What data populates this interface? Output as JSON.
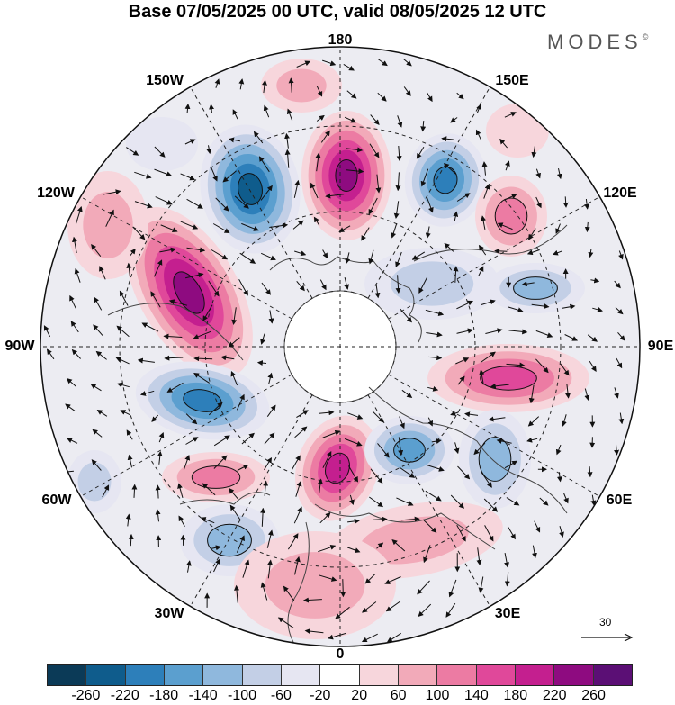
{
  "title": "Base 07/05/2025 00 UTC, valid 08/05/2025 12 UTC",
  "brand": {
    "text": "MODES",
    "mark": "©"
  },
  "longitude_labels": [
    "180",
    "150E",
    "120E",
    "90E",
    "60E",
    "30E",
    "0",
    "30W",
    "60W",
    "90W",
    "120W",
    "150W"
  ],
  "reference_vector": {
    "value": "30"
  },
  "colorbar": {
    "colors": [
      "#0b3a57",
      "#0f5c8c",
      "#2d7fba",
      "#5b9fcf",
      "#8fb8dd",
      "#c3cfe6",
      "#e6e6f2",
      "#ffffff",
      "#f7d6dc",
      "#f2aab9",
      "#ec7ba3",
      "#e0489a",
      "#c41f8f",
      "#8e0b80",
      "#5b0f75"
    ],
    "ticks": [
      "-260",
      "-220",
      "-180",
      "-140",
      "-100",
      "-60",
      "-20",
      "20",
      "60",
      "100",
      "140",
      "180",
      "220",
      "260"
    ]
  },
  "colors": {
    "land_grey": "#e6e6e6",
    "coast": "#444444"
  }
}
